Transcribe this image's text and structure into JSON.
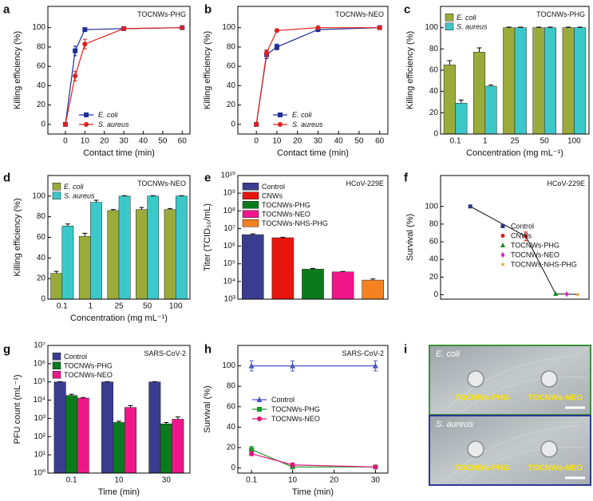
{
  "chart_data": [
    {
      "type": "line",
      "panel_label": "a",
      "annotation": "TOCNWs-PHG",
      "xlabel": "Contact time (min)",
      "ylabel": "Killing efficiency (%)",
      "x": [
        0,
        5,
        10,
        30,
        60
      ],
      "xlim": [
        -9,
        64
      ],
      "xticks": [
        0,
        10,
        20,
        30,
        40,
        50,
        60
      ],
      "ylim": [
        -10,
        122
      ],
      "yticks": [
        0,
        20,
        40,
        60,
        80,
        100
      ],
      "legend": "lower center",
      "series": [
        {
          "name": "E. coli",
          "font_style": "italic",
          "color": "#1f2f9a",
          "marker": "square",
          "values": [
            0,
            76,
            98,
            99,
            100
          ],
          "errors": [
            0,
            5,
            1,
            1,
            1
          ]
        },
        {
          "name": "S. aureus",
          "font_style": "italic",
          "color": "#e0201b",
          "marker": "circle",
          "values": [
            0,
            50,
            83,
            99,
            100
          ],
          "errors": [
            0,
            5,
            5,
            1,
            1
          ]
        }
      ]
    },
    {
      "type": "line",
      "panel_label": "b",
      "annotation": "TOCNWs-NEO",
      "xlabel": "Contact time (min)",
      "ylabel": "Killing efficiency (%)",
      "x": [
        0,
        5,
        10,
        30,
        60
      ],
      "xlim": [
        -9,
        64
      ],
      "xticks": [
        0,
        10,
        20,
        30,
        40,
        50,
        60
      ],
      "ylim": [
        -10,
        122
      ],
      "yticks": [
        0,
        20,
        40,
        60,
        80,
        100
      ],
      "legend": "lower center",
      "series": [
        {
          "name": "E. coli",
          "font_style": "italic",
          "color": "#1f2f9a",
          "marker": "square",
          "values": [
            0,
            72,
            80,
            98,
            100
          ],
          "errors": [
            0,
            4,
            3,
            1,
            1
          ]
        },
        {
          "name": "S. aureus",
          "font_style": "italic",
          "color": "#e0201b",
          "marker": "circle",
          "values": [
            0,
            74,
            97,
            100,
            100
          ],
          "errors": [
            0,
            3,
            1,
            1,
            1
          ]
        }
      ]
    },
    {
      "type": "bar",
      "panel_label": "c",
      "annotation": "TOCNWs-PHG",
      "xlabel": "Concentration (mg mL⁻¹)",
      "ylabel": "Killing efficiency (%)",
      "categories": [
        "0.1",
        "1",
        "25",
        "50",
        "100"
      ],
      "ylim": [
        0,
        120
      ],
      "yticks": [
        0,
        20,
        40,
        60,
        80,
        100
      ],
      "legend": "upper left",
      "series": [
        {
          "name": "E. coli",
          "font_style": "italic",
          "color": "#9aab3a",
          "values": [
            65,
            77,
            100,
            100,
            100
          ],
          "errors": [
            4,
            4,
            0.5,
            0.5,
            0.5
          ]
        },
        {
          "name": "S. aureus",
          "font_style": "italic",
          "color": "#3cc8c8",
          "values": [
            29,
            45,
            100,
            100,
            100
          ],
          "errors": [
            3,
            1,
            0.5,
            0.5,
            0.5
          ]
        }
      ]
    },
    {
      "type": "bar",
      "panel_label": "d",
      "annotation": "TOCNWs-NEO",
      "xlabel": "Concentration (mg mL⁻¹)",
      "ylabel": "Killing efficiency (%)",
      "categories": [
        "0.1",
        "1",
        "25",
        "50",
        "100"
      ],
      "ylim": [
        0,
        120
      ],
      "yticks": [
        0,
        20,
        40,
        60,
        80,
        100
      ],
      "legend": "upper left",
      "series": [
        {
          "name": "E. coli",
          "font_style": "italic",
          "color": "#9aab3a",
          "values": [
            25,
            61,
            86,
            87,
            87
          ],
          "errors": [
            2,
            3,
            1,
            2,
            1
          ]
        },
        {
          "name": "S. aureus",
          "font_style": "italic",
          "color": "#3cc8c8",
          "values": [
            71,
            94,
            100,
            100,
            100
          ],
          "errors": [
            2,
            2,
            0.5,
            0.5,
            0.5
          ]
        }
      ]
    },
    {
      "type": "bar",
      "panel_label": "e",
      "annotation": "HCoV-229E",
      "ylabel": "Titer (TCID₅₀/mL)",
      "log_y": true,
      "ylim": [
        1000,
        10000000000
      ],
      "yticks": [
        {
          "value": 1000,
          "label": "10³"
        },
        {
          "value": 10000,
          "label": "10⁴"
        },
        {
          "value": 100000,
          "label": "10⁵"
        },
        {
          "value": 1000000,
          "label": "10⁶"
        },
        {
          "value": 10000000,
          "label": "10⁷"
        },
        {
          "value": 100000000,
          "label": "10⁸"
        },
        {
          "value": 1000000000,
          "label": "10⁹"
        },
        {
          "value": 10000000000,
          "label": "10¹⁰"
        }
      ],
      "legend": "upper left",
      "series": [
        {
          "name": "Control",
          "color": "#3a3d8f",
          "values": [
            4500000
          ],
          "errors": [
            500000
          ]
        },
        {
          "name": "CNWs",
          "color": "#e8140e",
          "values": [
            3000000
          ],
          "errors": [
            200000
          ]
        },
        {
          "name": "TOCNWs-PHG",
          "color": "#0b7a1c",
          "values": [
            50000
          ],
          "errors": [
            5000
          ]
        },
        {
          "name": "TOCNWs-NEO",
          "color": "#f0168a",
          "values": [
            35000
          ],
          "errors": [
            2000
          ]
        },
        {
          "name": "TOCNWs-NHS-PHG",
          "color": "#f58220",
          "values": [
            12000
          ],
          "errors": [
            2000
          ]
        }
      ]
    },
    {
      "type": "scatter",
      "panel_label": "f",
      "annotation": "HCoV-229E",
      "ylabel": "Survival (%)",
      "connect": true,
      "xlim": [
        0,
        4
      ],
      "ylim": [
        -5,
        135
      ],
      "yticks": [
        0,
        20,
        40,
        60,
        80,
        100
      ],
      "legend": "center right",
      "series": [
        {
          "name": "Control",
          "color": "#2a3580",
          "marker": "square",
          "x": [
            0.8
          ],
          "values": [
            100
          ],
          "errors": [
            0
          ]
        },
        {
          "name": "CNWs",
          "color": "#e8140e",
          "marker": "circle",
          "x": [
            2.3
          ],
          "values": [
            66
          ],
          "errors": [
            5
          ]
        },
        {
          "name": "TOCNWs-PHG",
          "color": "#0b8a1c",
          "marker": "triangle",
          "x": [
            3.1
          ],
          "values": [
            1
          ],
          "errors": [
            0
          ]
        },
        {
          "name": "TOCNWs-NEO",
          "color": "#e01ad0",
          "marker": "diamond",
          "x": [
            3.4
          ],
          "values": [
            0.8
          ],
          "errors": [
            0
          ]
        },
        {
          "name": "TOCNWs-NHS-PHG",
          "color": "#f0a020",
          "marker": "star",
          "x": [
            3.7
          ],
          "values": [
            0.3
          ],
          "errors": [
            0
          ]
        }
      ]
    },
    {
      "type": "bar",
      "panel_label": "g",
      "annotation": "SARS-CoV-2",
      "xlabel": "Time (min)",
      "ylabel": "PFU count (mL⁻¹)",
      "log_y": true,
      "categories": [
        "0.1",
        "10",
        "30"
      ],
      "ylim": [
        1,
        10000000
      ],
      "yticks": [
        {
          "value": 1,
          "label": "10⁰"
        },
        {
          "value": 10,
          "label": "10¹"
        },
        {
          "value": 100,
          "label": "10²"
        },
        {
          "value": 1000,
          "label": "10³"
        },
        {
          "value": 10000,
          "label": "10⁴"
        },
        {
          "value": 100000,
          "label": "10⁵"
        },
        {
          "value": 1000000,
          "label": "10⁶"
        },
        {
          "value": 10000000,
          "label": "10⁷"
        }
      ],
      "legend": "upper left",
      "series": [
        {
          "name": "Control",
          "color": "#3a3d8f",
          "values": [
            100000,
            100000,
            100000
          ],
          "errors": [
            4000,
            4000,
            4000
          ]
        },
        {
          "name": "TOCNWs-PHG",
          "color": "#0b7a1c",
          "values": [
            18000,
            600,
            500
          ],
          "errors": [
            3000,
            100,
            100
          ]
        },
        {
          "name": "TOCNWs-NEO",
          "color": "#f0168a",
          "values": [
            13000,
            4000,
            900
          ],
          "errors": [
            1000,
            1000,
            300
          ]
        }
      ]
    },
    {
      "type": "line",
      "panel_label": "h",
      "annotation": "SARS-CoV-2",
      "xlabel": "Time (min)",
      "ylabel": "Survival (%)",
      "x": [
        0.1,
        10,
        30
      ],
      "xlim": [
        -3.2,
        33
      ],
      "xticks": [
        0.1,
        10,
        20,
        30
      ],
      "ylim": [
        -5,
        120
      ],
      "yticks": [
        0,
        20,
        40,
        60,
        80,
        100
      ],
      "legend": "center",
      "series": [
        {
          "name": "Control",
          "color": "#4a55c0",
          "marker": "triangle",
          "values": [
            100,
            100,
            100
          ],
          "errors": [
            5,
            5,
            5
          ]
        },
        {
          "name": "TOCNWs-PHG",
          "color": "#1a9a2a",
          "marker": "square",
          "values": [
            18,
            1,
            1
          ],
          "errors": [
            3,
            1,
            1
          ]
        },
        {
          "name": "TOCNWs-NEO",
          "color": "#e0147a",
          "marker": "circle",
          "values": [
            14,
            3,
            1
          ],
          "errors": [
            2,
            2,
            1
          ]
        }
      ]
    },
    {
      "type": "image",
      "panel_label": "i",
      "plates": [
        {
          "name": "E. coli",
          "border": "#3a8f3a",
          "samples": [
            "TOCNWs-PHG",
            "TOCNWs-NEO"
          ]
        },
        {
          "name": "S. aureus",
          "border": "#2c3a96",
          "samples": [
            "TOCNWs-PHG",
            "TOCNWs-NEO"
          ]
        }
      ]
    }
  ]
}
